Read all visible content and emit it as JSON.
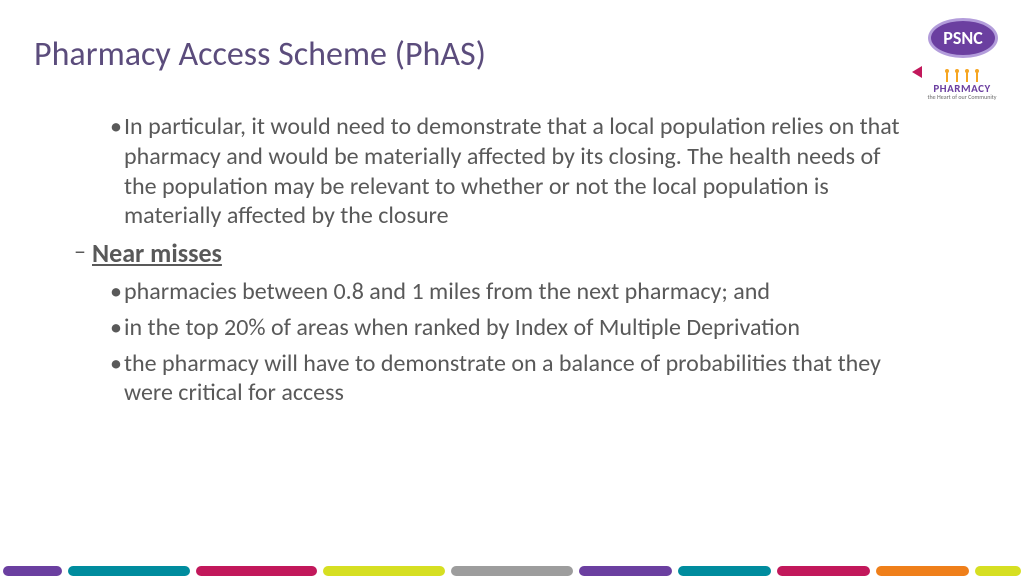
{
  "title": {
    "text": "Pharmacy Access Scheme (PhAS)",
    "color": "#5b4c7c",
    "fontsize": 34,
    "fontweight": 400
  },
  "logos": {
    "psnc": {
      "text": "PSNC",
      "bg": "#6b3fa0",
      "border": "#b39ddb",
      "text_color": "#ffffff",
      "fontsize": 18
    },
    "pharmacy": {
      "word": "PHARMACY",
      "tagline": "the Heart of our Community",
      "people_color": "#f5a623",
      "flag_color": "#c2185b",
      "word_color": "#6b3fa0",
      "tag_color": "#6b6b6b",
      "word_fontsize": 11,
      "tag_fontsize": 6
    }
  },
  "body": {
    "text_color": "#595959",
    "fontsize": 24,
    "line_height": 1.24,
    "bullets": [
      {
        "text": "In particular, it would need to demonstrate that a local population relies on that pharmacy and would be materially affected by its closing. The health needs of the population may be relevant to whether or not the local population is materially affected by the closure"
      }
    ],
    "sub": {
      "label": "Near misses",
      "label_fontsize": 26,
      "bullets": [
        "pharmacies between 0.8 and 1 miles from the next pharmacy; and",
        "in the top 20% of areas when ranked by Index of Multiple Deprivation",
        "the pharmacy will have to demonstrate on a balance of probabilities that they were critical for access"
      ]
    }
  },
  "footer_stripes": {
    "height": 10,
    "gap": 6,
    "colors": [
      "#6b3fa0",
      "#008c9e",
      "#c2185b",
      "#d6df22",
      "#9d9d9d",
      "#6b3fa0",
      "#008c9e",
      "#c2185b",
      "#ef7f1a",
      "#d6df22"
    ],
    "widths": [
      62,
      128,
      128,
      128,
      128,
      98,
      98,
      98,
      98,
      48
    ]
  },
  "background_color": "#ffffff"
}
